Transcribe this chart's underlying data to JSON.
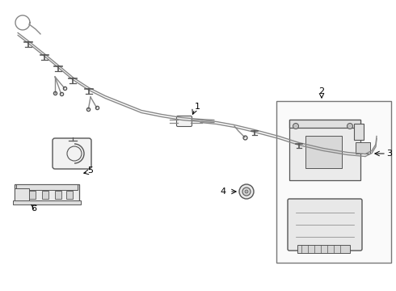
{
  "background_color": "#ffffff",
  "line_color": "#999999",
  "dark_line_color": "#555555",
  "label_color": "#000000",
  "figsize": [
    4.9,
    3.6
  ],
  "dpi": 100,
  "wire_color": "#888888",
  "part_fill": "#f2f2f2",
  "part_edge": "#555555"
}
